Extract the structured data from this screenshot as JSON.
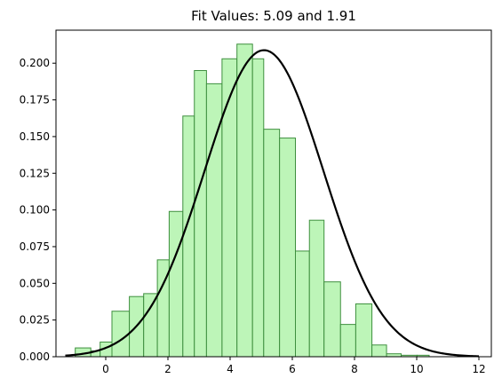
{
  "chart_data": {
    "type": "bar",
    "title": "Fit Values: 5.09 and 1.91",
    "xlabel": "",
    "ylabel": "",
    "xlim": [
      -1.6,
      12.4
    ],
    "ylim": [
      0,
      0.2225
    ],
    "xticks": [
      0,
      2,
      4,
      6,
      8,
      10,
      12
    ],
    "xtick_labels": [
      "0",
      "2",
      "4",
      "6",
      "8",
      "10",
      "12"
    ],
    "yticks": [
      0.0,
      0.025,
      0.05,
      0.075,
      0.1,
      0.125,
      0.15,
      0.175,
      0.2
    ],
    "ytick_labels": [
      "0.000",
      "0.025",
      "0.050",
      "0.075",
      "0.100",
      "0.125",
      "0.150",
      "0.175",
      "0.200"
    ],
    "grid": false,
    "histogram": {
      "bin_edges": [
        -0.98,
        -0.48,
        -0.18,
        0.2,
        0.76,
        1.22,
        1.66,
        2.04,
        2.48,
        2.85,
        3.24,
        3.74,
        4.22,
        4.72,
        5.08,
        5.59,
        6.1,
        6.55,
        7.02,
        7.55,
        8.04,
        8.56,
        9.03,
        9.5,
        10.01,
        10.4
      ],
      "values": [
        0.006,
        0.004,
        0.01,
        0.031,
        0.041,
        0.043,
        0.066,
        0.099,
        0.164,
        0.195,
        0.186,
        0.203,
        0.213,
        0.203,
        0.155,
        0.149,
        0.072,
        0.093,
        0.051,
        0.022,
        0.036,
        0.008,
        0.002,
        0.001,
        0.001
      ],
      "fill_color": "#bdf5b8",
      "edge_color": "#3e8f3e"
    },
    "fit_curve": {
      "type": "normal-pdf",
      "mean": 5.09,
      "std": 1.91,
      "x_range": [
        -1.3,
        12.0
      ],
      "color": "#000000"
    }
  }
}
